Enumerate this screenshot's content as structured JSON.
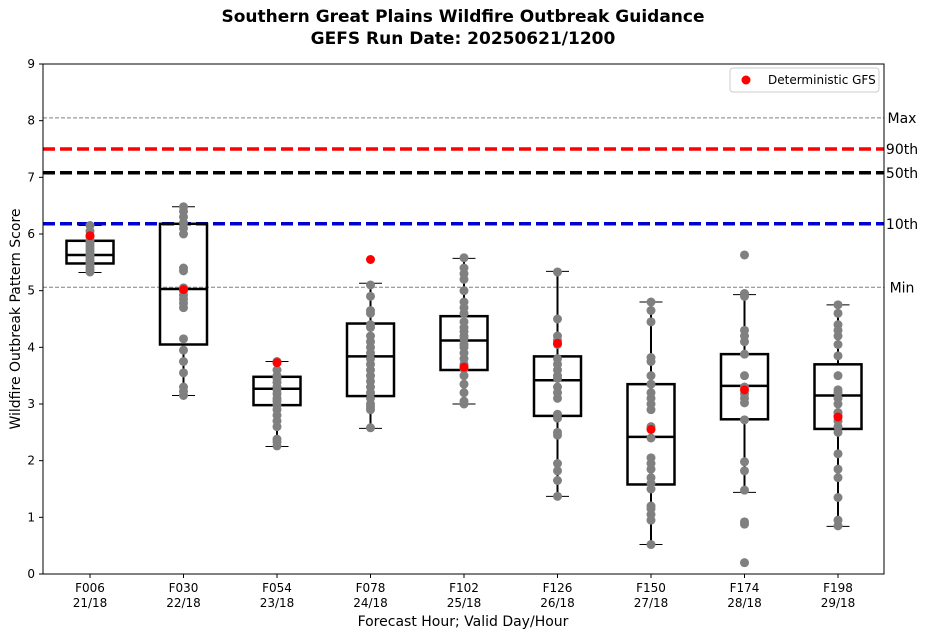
{
  "chart_data": {
    "type": "box",
    "title": "Southern Great Plains Wildfire Outbreak Guidance",
    "subtitle": "GEFS Run Date: 20250621/1200",
    "xlabel": "Forecast Hour; Valid Day/Hour",
    "ylabel": "Wildfire Outbreak Pattern Score",
    "ylim": [
      0,
      9
    ],
    "yticks": [
      "0",
      "1",
      "2",
      "3",
      "4",
      "5",
      "6",
      "7",
      "8",
      "9"
    ],
    "grid": false,
    "legend": {
      "placement": "top-right",
      "label": "Deterministic GFS",
      "color": "#ff0000"
    },
    "categories": [
      {
        "hour": "F006",
        "valid": "21/18"
      },
      {
        "hour": "F030",
        "valid": "22/18"
      },
      {
        "hour": "F054",
        "valid": "23/18"
      },
      {
        "hour": "F078",
        "valid": "24/18"
      },
      {
        "hour": "F102",
        "valid": "25/18"
      },
      {
        "hour": "F126",
        "valid": "26/18"
      },
      {
        "hour": "F150",
        "valid": "27/18"
      },
      {
        "hour": "F174",
        "valid": "28/18"
      },
      {
        "hour": "F198",
        "valid": "29/18"
      }
    ],
    "boxes": [
      {
        "whislo": 5.32,
        "q1": 5.48,
        "med": 5.63,
        "q3": 5.88,
        "whishi": 6.15
      },
      {
        "whislo": 3.15,
        "q1": 4.05,
        "med": 5.03,
        "q3": 6.18,
        "whishi": 6.48
      },
      {
        "whislo": 2.25,
        "q1": 2.98,
        "med": 3.27,
        "q3": 3.48,
        "whishi": 3.75
      },
      {
        "whislo": 2.57,
        "q1": 3.14,
        "med": 3.84,
        "q3": 4.42,
        "whishi": 5.13
      },
      {
        "whislo": 3.0,
        "q1": 3.6,
        "med": 4.12,
        "q3": 4.55,
        "whishi": 5.57
      },
      {
        "whislo": 1.37,
        "q1": 2.79,
        "med": 3.42,
        "q3": 3.84,
        "whishi": 5.34
      },
      {
        "whislo": 0.52,
        "q1": 1.58,
        "med": 2.42,
        "q3": 3.35,
        "whishi": 4.8
      },
      {
        "whislo": 1.44,
        "q1": 2.73,
        "med": 3.32,
        "q3": 3.88,
        "whishi": 4.93
      },
      {
        "whislo": 0.84,
        "q1": 2.56,
        "med": 3.15,
        "q3": 3.7,
        "whishi": 4.75
      }
    ],
    "members": [
      [
        5.33,
        5.37,
        5.42,
        5.48,
        5.52,
        5.55,
        5.6,
        5.63,
        5.65,
        5.7,
        5.75,
        5.8,
        5.85,
        5.88,
        5.95,
        6.05,
        6.15
      ],
      [
        3.15,
        3.22,
        3.3,
        3.55,
        3.75,
        3.95,
        4.15,
        4.7,
        4.78,
        4.85,
        4.92,
        5.0,
        5.05,
        5.35,
        5.4,
        6.0,
        6.1,
        6.2,
        6.3,
        6.4,
        6.48
      ],
      [
        2.26,
        2.33,
        2.38,
        2.6,
        2.7,
        2.8,
        2.9,
        2.98,
        3.05,
        3.1,
        3.18,
        3.25,
        3.3,
        3.38,
        3.45,
        3.5,
        3.6,
        3.75
      ],
      [
        2.58,
        2.9,
        2.95,
        3.0,
        3.1,
        3.2,
        3.3,
        3.4,
        3.5,
        3.6,
        3.7,
        3.8,
        3.9,
        4.0,
        4.1,
        4.2,
        4.35,
        4.4,
        4.6,
        4.65,
        4.9,
        5.1
      ],
      [
        3.0,
        3.05,
        3.2,
        3.35,
        3.5,
        3.62,
        3.7,
        3.8,
        3.9,
        4.0,
        4.05,
        4.15,
        4.2,
        4.28,
        4.35,
        4.45,
        4.6,
        4.7,
        4.8,
        5.0,
        5.2,
        5.3,
        5.4,
        5.58
      ],
      [
        1.37,
        1.65,
        1.82,
        1.95,
        2.45,
        2.5,
        2.75,
        2.82,
        3.1,
        3.2,
        3.3,
        3.45,
        3.5,
        3.6,
        3.7,
        3.8,
        4.05,
        4.12,
        4.2,
        4.5,
        5.33
      ],
      [
        0.52,
        0.95,
        1.05,
        1.15,
        1.2,
        1.5,
        1.6,
        1.7,
        1.85,
        1.95,
        2.05,
        2.4,
        2.6,
        2.9,
        3.0,
        3.1,
        3.2,
        3.35,
        3.5,
        3.75,
        3.82,
        4.45,
        4.65,
        4.8
      ],
      [
        0.2,
        0.88,
        0.92,
        1.48,
        1.82,
        1.98,
        2.72,
        3.02,
        3.1,
        3.18,
        3.3,
        3.5,
        3.88,
        4.1,
        4.2,
        4.3,
        4.9,
        4.95,
        5.63
      ],
      [
        0.85,
        0.95,
        1.35,
        1.7,
        1.85,
        2.12,
        2.5,
        2.6,
        2.7,
        2.8,
        2.85,
        3.0,
        3.1,
        3.2,
        3.25,
        3.5,
        3.85,
        4.05,
        4.2,
        4.3,
        4.4,
        4.6,
        4.75
      ]
    ],
    "deterministic_gfs": [
      5.97,
      5.02,
      3.73,
      5.55,
      3.65,
      4.07,
      2.55,
      3.25,
      2.77
    ],
    "reference_lines": [
      {
        "label": "Max",
        "value": 8.05,
        "color": "#808080",
        "style": "dotted"
      },
      {
        "label": "90th",
        "value": 7.5,
        "color": "#ff0000",
        "style": "dashed-thick"
      },
      {
        "label": "50th",
        "value": 7.08,
        "color": "#000000",
        "style": "dashed-thick"
      },
      {
        "label": "10th",
        "value": 6.18,
        "color": "#0000cc",
        "style": "dashed-thick"
      },
      {
        "label": "Min",
        "value": 5.06,
        "color": "#808080",
        "style": "dotted"
      }
    ],
    "colors": {
      "member": "#808080",
      "box": "#000000"
    }
  }
}
